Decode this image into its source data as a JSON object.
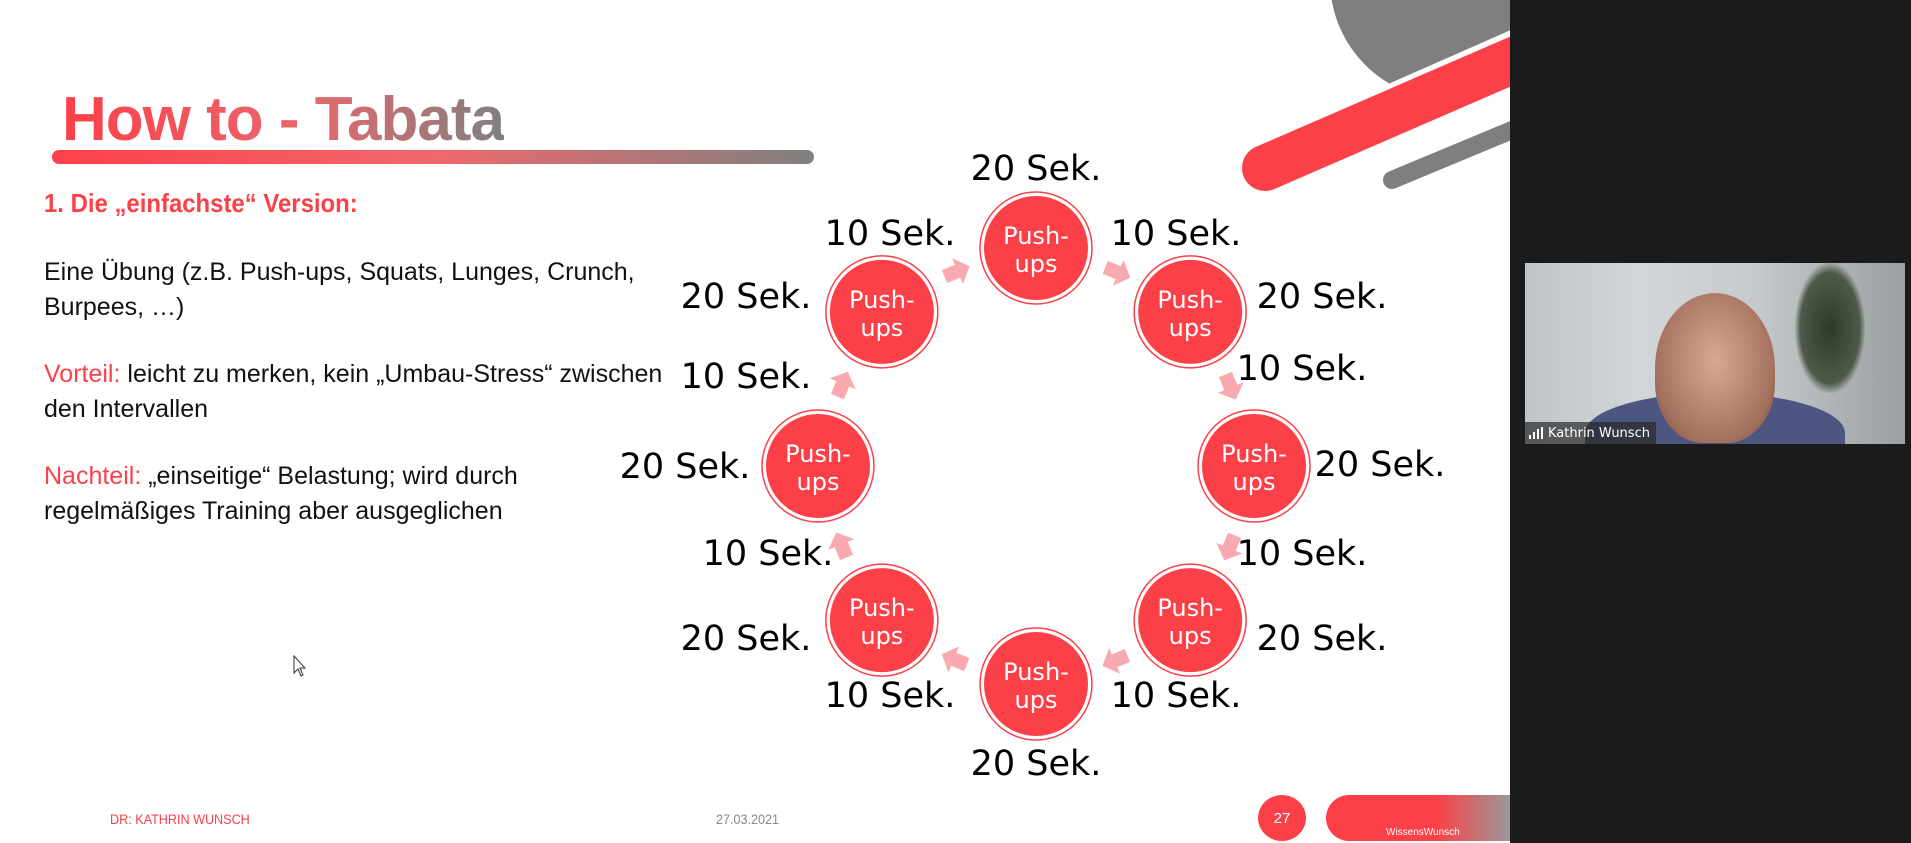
{
  "slide": {
    "title": "How to - Tabata",
    "heading": "1. Die „einfachste“ Version:",
    "exercise_text": "Eine Übung (z.B. Push-ups, Squats, Lunges, Crunch, Burpees, …)",
    "advantage_label": "Vorteil:",
    "advantage_text": " leicht zu merken, kein „Umbau-Stress“ zwischen den Intervallen",
    "disadvantage_label": "Nachteil:",
    "disadvantage_text": " „einseitige“ Belastung; wird durch regelmäßiges Training aber ausgeglichen",
    "circle_label": "Push-ups",
    "circle_line1": "Push-",
    "circle_line2": "ups",
    "time_labels": [
      "20 Sek.",
      "10 Sek.",
      "10 Sek.",
      "20 Sek.",
      "20 Sek.",
      "10 Sek.",
      "10 Sek.",
      "20 Sek.",
      "20 Sek.",
      "10 Sek.",
      "10 Sek.",
      "20 Sek.",
      "20 Sek.",
      "10 Sek.",
      "10 Sek.",
      "20 Sek."
    ],
    "footer_author": "DR: KATHRIN WUNSCH",
    "footer_date": "27.03.2021",
    "page_number": "27",
    "logo_text": "WissensWunsch"
  },
  "video": {
    "participant_name": "Kathrin Wunsch",
    "signal_icon": "signal-bars-icon"
  },
  "colors": {
    "accent": "#fc4048",
    "arrow": "#f9a9b0",
    "gray": "#808080",
    "background": "#1b1b1b"
  }
}
